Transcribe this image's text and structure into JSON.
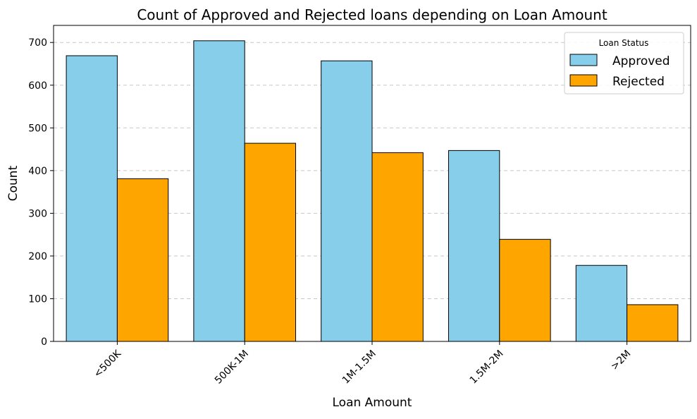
{
  "chart_data": {
    "type": "bar",
    "title": "Count of Approved and Rejected loans depending on Loan Amount",
    "xlabel": "Loan Amount",
    "ylabel": "Count",
    "categories": [
      "<500K",
      "500K-1M",
      "1M-1.5M",
      "1.5M-2M",
      ">2M"
    ],
    "series": [
      {
        "name": "Approved",
        "values": [
          669,
          704,
          657,
          447,
          178
        ],
        "color": "#87CEEB"
      },
      {
        "name": "Rejected",
        "values": [
          381,
          464,
          442,
          239,
          86
        ],
        "color": "#FFA500"
      }
    ],
    "ylim": [
      0,
      740
    ],
    "yticks": [
      0,
      100,
      200,
      300,
      400,
      500,
      600,
      700
    ],
    "grid": "horizontal-dashed",
    "legend": {
      "title": "Loan Status",
      "placement": "top-right"
    },
    "xtick_rotation": 45
  }
}
